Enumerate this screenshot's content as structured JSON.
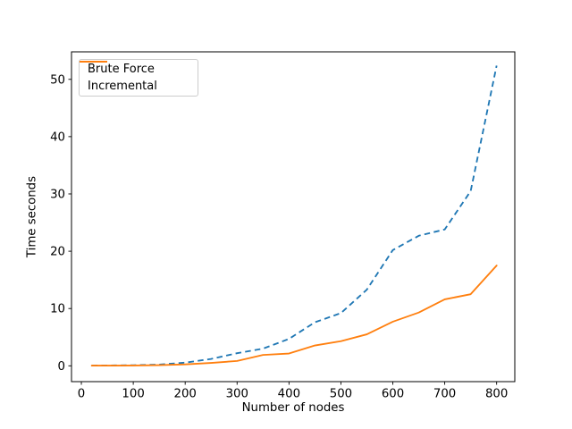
{
  "figure": {
    "background": "#ffffff",
    "spine_color": "#000000",
    "text_color": "#000000"
  },
  "chart_data": {
    "type": "line",
    "title": "",
    "xlabel": "Number of nodes",
    "ylabel": "Time seconds",
    "x": [
      20,
      50,
      100,
      150,
      200,
      250,
      300,
      350,
      400,
      450,
      500,
      550,
      600,
      650,
      700,
      750,
      800
    ],
    "series": [
      {
        "name": "Brute Force",
        "color": "#1f77b4",
        "style": "dashed",
        "values": [
          0.05,
          0.06,
          0.1,
          0.22,
          0.55,
          1.2,
          2.2,
          3.0,
          4.7,
          7.6,
          9.2,
          13.3,
          20.2,
          22.7,
          23.8,
          30.5,
          52.4
        ]
      },
      {
        "name": "Incremental",
        "color": "#ff7f0e",
        "style": "solid",
        "values": [
          0.03,
          0.04,
          0.06,
          0.12,
          0.25,
          0.5,
          0.85,
          1.9,
          2.15,
          3.55,
          4.3,
          5.5,
          7.7,
          9.3,
          11.6,
          12.5,
          17.5
        ]
      }
    ],
    "xlim": [
      -19,
      835
    ],
    "ylim": [
      -2.76,
      54.8
    ],
    "xticks": [
      0,
      100,
      200,
      300,
      400,
      500,
      600,
      700,
      800
    ],
    "yticks": [
      0,
      10,
      20,
      30,
      40,
      50
    ],
    "grid": false,
    "legend_position": "upper left"
  }
}
